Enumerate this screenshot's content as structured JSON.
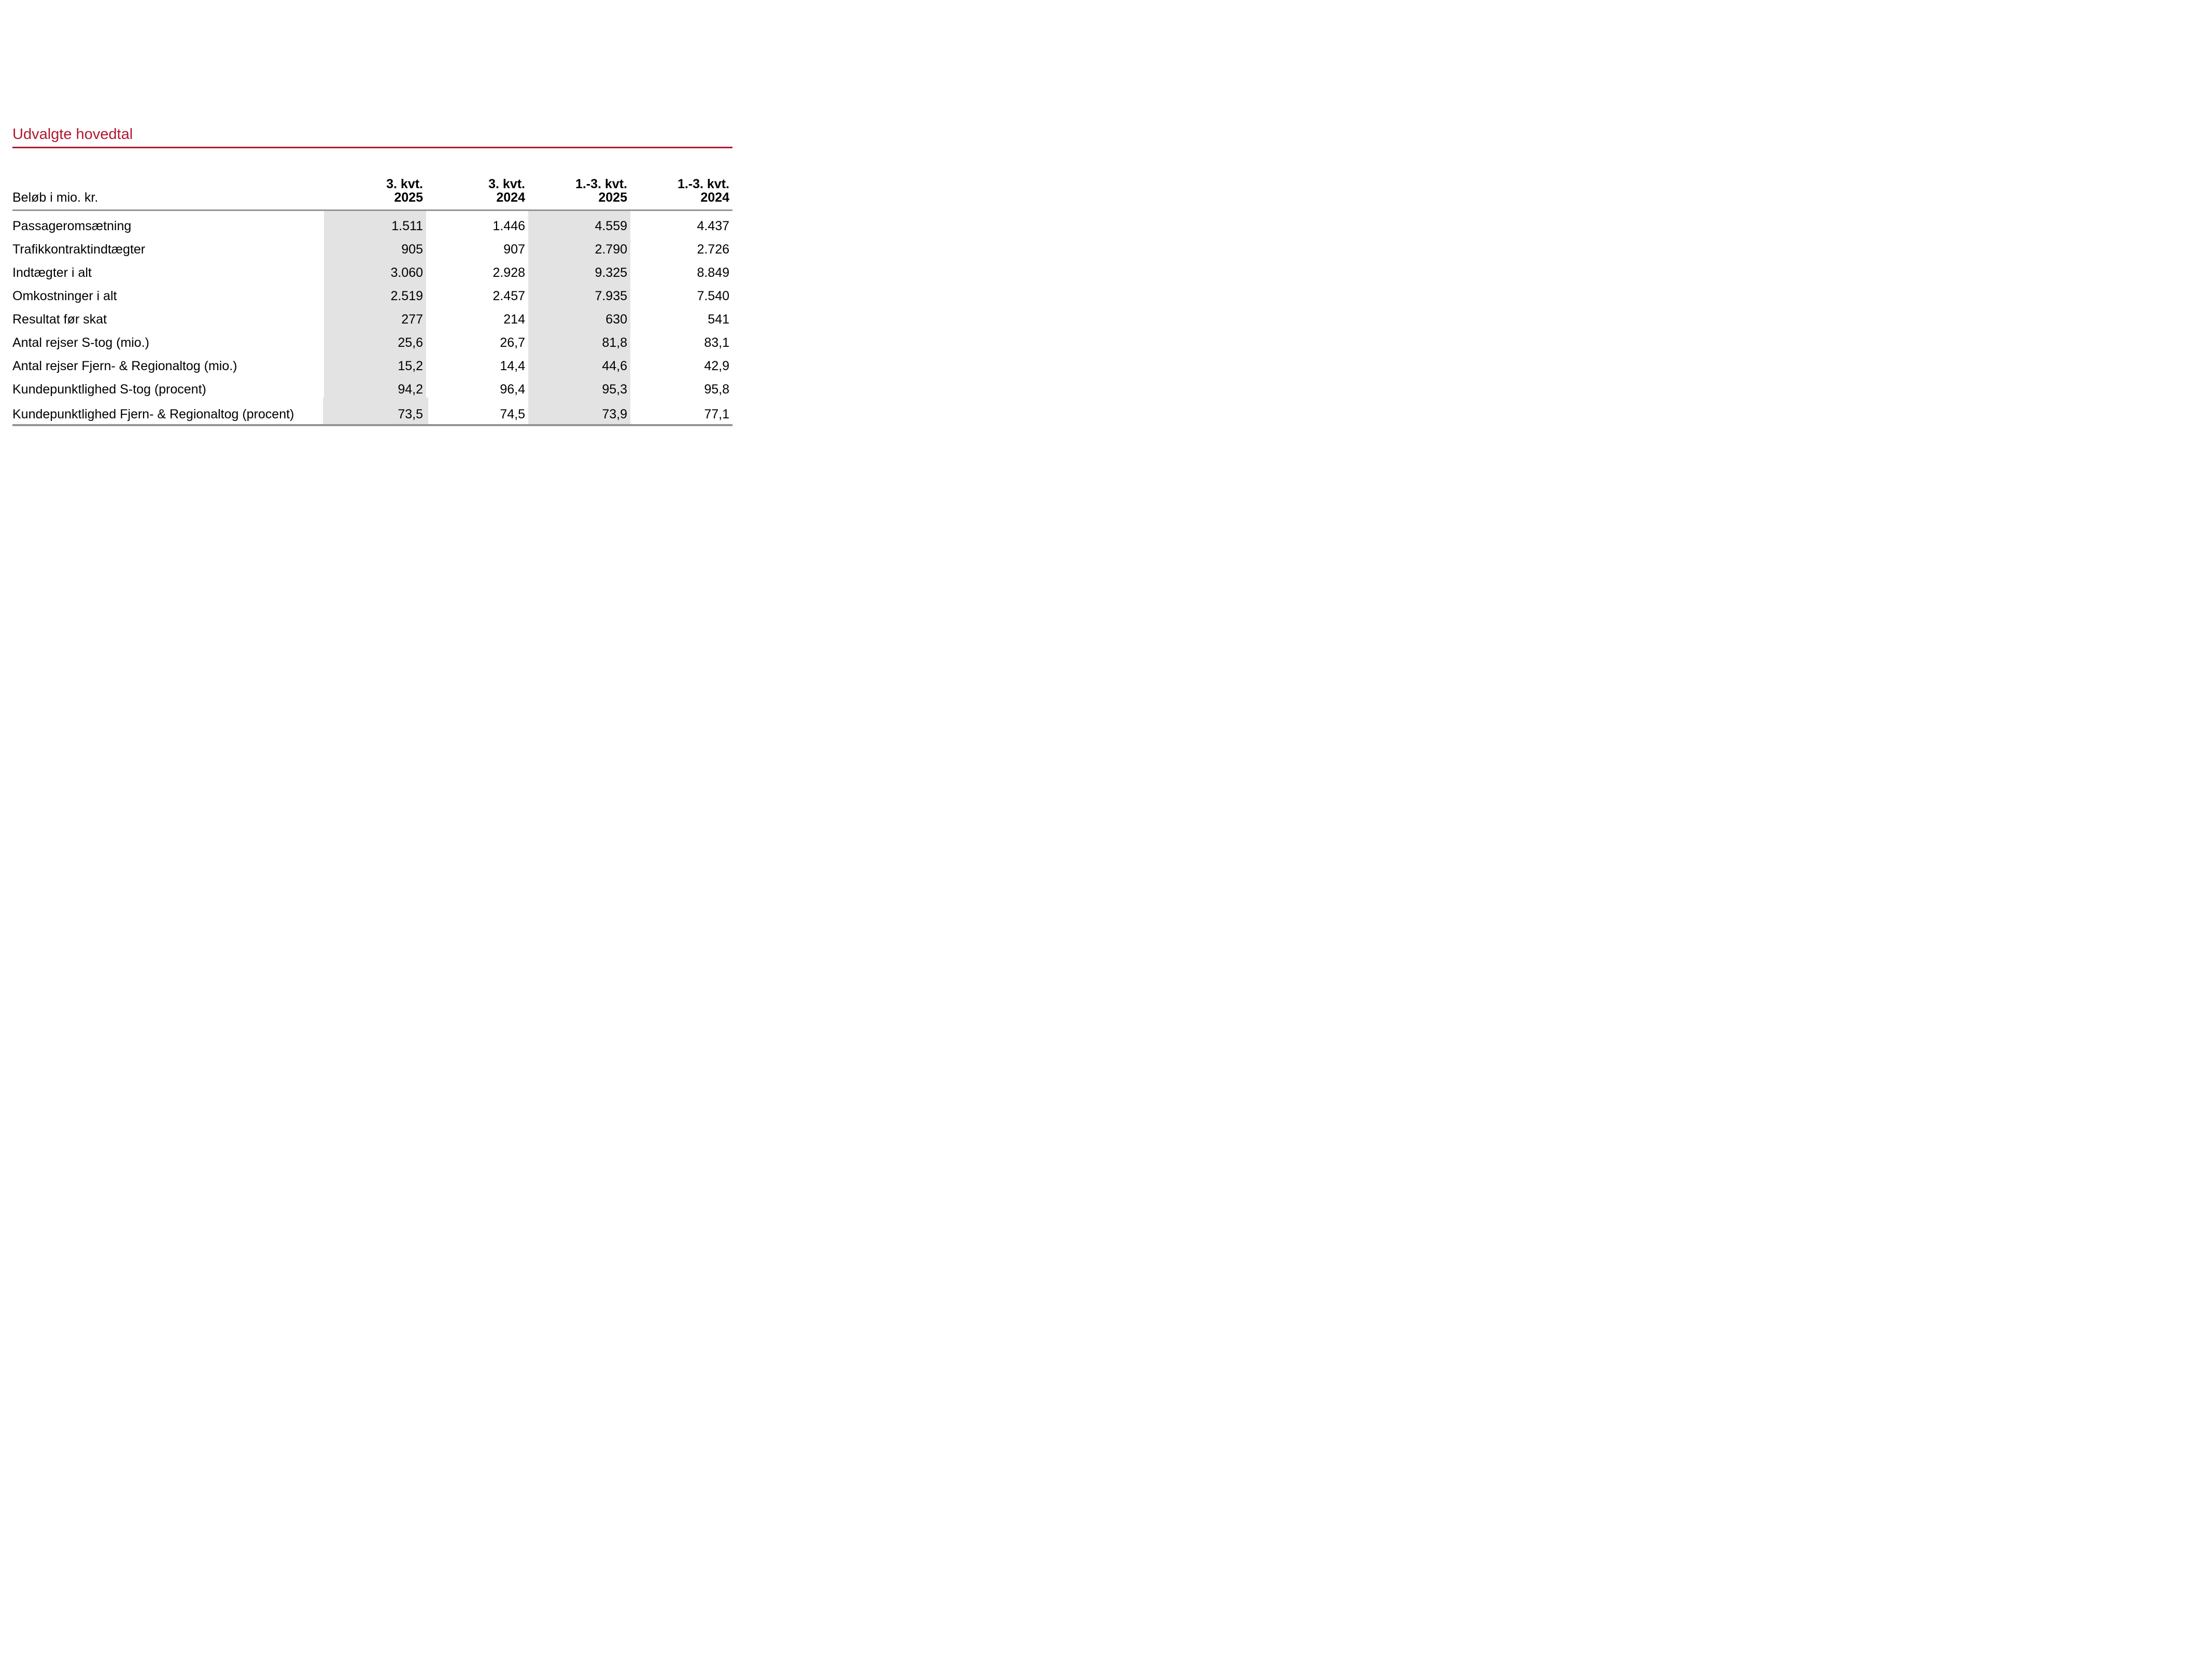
{
  "page": {
    "title": "Udvalgte hovedtal",
    "colors": {
      "accent_red": "#B0182F",
      "rule_gray": "#959595",
      "band_gray": "#E3E3E3",
      "text": "#000000"
    }
  },
  "table": {
    "row_header_label": "Beløb i mio. kr.",
    "columns": [
      {
        "line1": "3. kvt.",
        "line2": "2025",
        "shaded": true
      },
      {
        "line1": "3. kvt.",
        "line2": "2024",
        "shaded": false
      },
      {
        "line1": "1.-3. kvt.",
        "line2": "2025",
        "shaded": true
      },
      {
        "line1": "1.-3. kvt.",
        "line2": "2024",
        "shaded": false
      }
    ],
    "rows": [
      {
        "label": "Passageromsætning",
        "values": [
          "1.511",
          "1.446",
          "4.559",
          "4.437"
        ]
      },
      {
        "label": "Trafikkontraktindtægter",
        "values": [
          "905",
          "907",
          "2.790",
          "2.726"
        ]
      },
      {
        "label": "Indtægter i alt",
        "values": [
          "3.060",
          "2.928",
          "9.325",
          "8.849"
        ]
      },
      {
        "label": "Omkostninger i alt",
        "values": [
          "2.519",
          "2.457",
          "7.935",
          "7.540"
        ]
      },
      {
        "label": "Resultat før skat",
        "values": [
          "277",
          "214",
          "630",
          "541"
        ]
      },
      {
        "label": "Antal rejser S-tog (mio.)",
        "values": [
          "25,6",
          "26,7",
          "81,8",
          "83,1"
        ]
      },
      {
        "label": "Antal rejser Fjern- & Regionaltog (mio.)",
        "values": [
          "15,2",
          "14,4",
          "44,6",
          "42,9"
        ]
      },
      {
        "label": "Kundepunktlighed S-tog (procent)",
        "values": [
          "94,2",
          "96,4",
          "95,3",
          "95,8"
        ]
      },
      {
        "label": "Kundepunktlighed Fjern- & Regionaltog (procent)",
        "values": [
          "73,5",
          "74,5",
          "73,9",
          "77,1"
        ]
      }
    ]
  }
}
